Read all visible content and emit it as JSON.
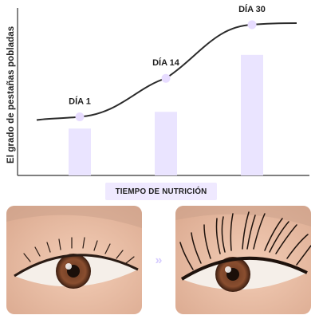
{
  "chart_data": {
    "type": "bar",
    "categories": [
      "DÍA 1",
      "DÍA 14",
      "DÍA 30"
    ],
    "values": [
      28,
      38,
      72
    ],
    "trend_points": [
      {
        "x": 1,
        "y": 35
      },
      {
        "x": 14,
        "y": 58
      },
      {
        "x": 30,
        "y": 90
      }
    ],
    "title": "",
    "xlabel": "TIEMPO DE NUTRICIÓN",
    "ylabel": "El grado de pestañas pobladas",
    "ylim": [
      0,
      100
    ],
    "grid": false,
    "bar_color": "#eae4ff",
    "line_color": "#2b2b2b",
    "dot_color": "#e7dcff"
  },
  "images": {
    "before_label": "before-eye-photo",
    "after_label": "after-eye-photo",
    "arrow_icon": "double-chevron-right-icon"
  }
}
